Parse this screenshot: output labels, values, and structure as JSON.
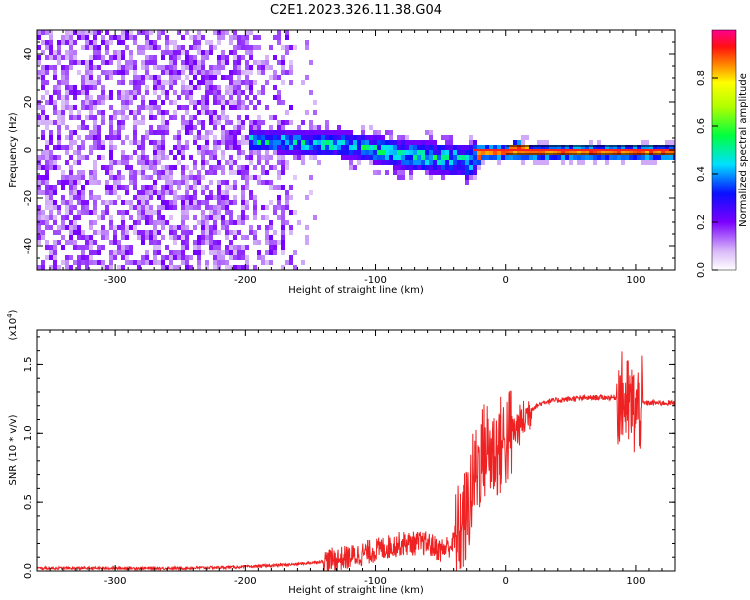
{
  "title": "C2E1.2023.326.11.38.G04",
  "chart_data": [
    {
      "type": "heatmap",
      "xlabel": "Height of straight line (km)",
      "ylabel": "Frequency (Hz)",
      "xlim": [
        -360,
        130
      ],
      "ylim": [
        -50,
        50
      ],
      "xticks": [
        -300,
        -200,
        -100,
        0,
        100
      ],
      "yticks": [
        -40,
        -20,
        0,
        20,
        40
      ],
      "colorbar": {
        "label": "Normalized spectral amplitude",
        "range": [
          0,
          1
        ],
        "ticks": [
          "0.0",
          "0.2",
          "0.4",
          "0.6",
          "0.8"
        ]
      },
      "trend": {
        "x": [
          -200,
          -160,
          -120,
          -100,
          -80,
          -60,
          -40,
          -30,
          -20,
          0,
          5,
          20,
          60,
          100,
          130
        ],
        "freq": [
          5,
          4,
          3,
          1,
          -1,
          -2,
          -3,
          -4,
          0,
          0,
          1,
          0,
          0,
          0,
          0
        ]
      }
    },
    {
      "type": "line",
      "xlabel": "Height of straight line (km)",
      "ylabel": "SNR (10 * v/v)",
      "yscale_label": "(x10",
      "yscale_exp": "4",
      "yscale_close": ")",
      "xlim": [
        -360,
        130
      ],
      "ylim": [
        0,
        1.75
      ],
      "xticks": [
        -300,
        -200,
        -100,
        0,
        100
      ],
      "yticks": [
        "0.0",
        "0.5",
        "1.0",
        "1.5"
      ],
      "color": "#ee2222",
      "series": [
        {
          "x": [
            -360,
            -300,
            -250,
            -200,
            -180,
            -160,
            -140,
            -120,
            -100,
            -80,
            -60,
            -50,
            -40,
            -30,
            -25,
            -20,
            -15,
            -10,
            -5,
            0,
            10,
            20,
            30,
            50,
            70,
            85,
            90,
            95,
            100,
            105,
            110,
            130
          ],
          "values": [
            0.02,
            0.02,
            0.02,
            0.03,
            0.04,
            0.05,
            0.07,
            0.1,
            0.15,
            0.2,
            0.2,
            0.15,
            0.2,
            0.4,
            0.65,
            0.8,
            0.9,
            0.85,
            0.9,
            0.95,
            1.05,
            1.18,
            1.23,
            1.25,
            1.26,
            1.26,
            1.25,
            1.2,
            1.15,
            1.22,
            1.22,
            1.22
          ]
        }
      ]
    }
  ]
}
